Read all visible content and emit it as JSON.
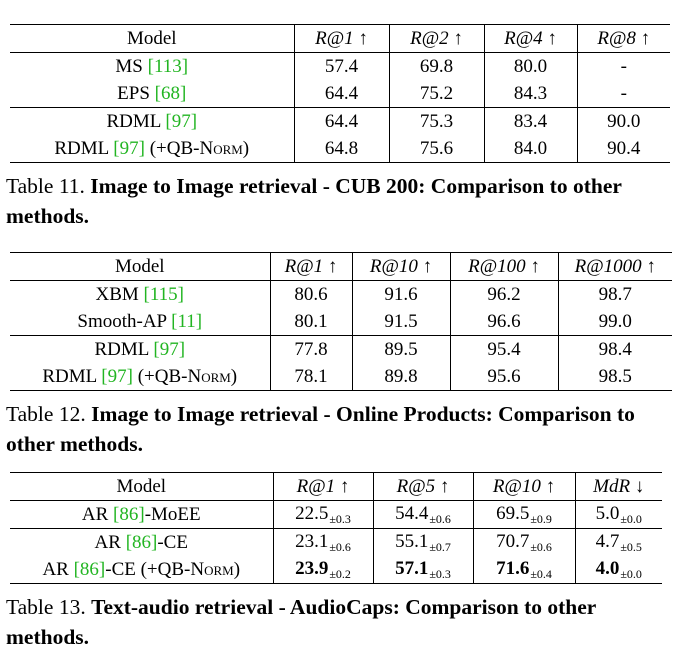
{
  "table11": {
    "headers": [
      "Model",
      "R@1 ↑",
      "R@2 ↑",
      "R@4 ↑",
      "R@8 ↑"
    ],
    "rows": [
      {
        "model": "MS ",
        "ref": "[113]",
        "suffix": "",
        "vals": [
          "57.4",
          "69.8",
          "80.0",
          "-"
        ],
        "bold_model": false,
        "bold": [
          false,
          false,
          false,
          false
        ]
      },
      {
        "model": "EPS ",
        "ref": "[68]",
        "suffix": "",
        "vals": [
          "64.4",
          "75.2",
          "84.3",
          "-"
        ],
        "bold_model": false,
        "bold": [
          false,
          false,
          true,
          false
        ]
      },
      {
        "model": "RDML ",
        "ref": "[97]",
        "suffix": "",
        "vals": [
          "64.4",
          "75.3",
          "83.4",
          "90.0"
        ],
        "bold_model": false,
        "bold": [
          false,
          false,
          false,
          false
        ]
      },
      {
        "model": "RDML ",
        "ref": "[97]",
        "suffix": " (+QB-Norm)",
        "vals": [
          "64.8",
          "75.6",
          "84.0",
          "90.4"
        ],
        "bold_model": true,
        "bold": [
          true,
          true,
          false,
          true
        ]
      }
    ],
    "caption_label": "Table 11. ",
    "caption_title": "Image to Image retrieval - CUB 200: Comparison to other methods."
  },
  "table12": {
    "headers": [
      "Model",
      "R@1 ↑",
      "R@10 ↑",
      "R@100 ↑",
      "R@1000 ↑"
    ],
    "rows": [
      {
        "model": "XBM ",
        "ref": "[115]",
        "suffix": "",
        "vals": [
          "80.6",
          "91.6",
          "96.2",
          "98.7"
        ],
        "bold_model": false,
        "bold": [
          true,
          true,
          false,
          false
        ]
      },
      {
        "model": "Smooth-AP ",
        "ref": "[11]",
        "suffix": "",
        "vals": [
          "80.1",
          "91.5",
          "96.6",
          "99.0"
        ],
        "bold_model": false,
        "bold": [
          false,
          false,
          true,
          true
        ]
      },
      {
        "model": "RDML ",
        "ref": "[97]",
        "suffix": "",
        "vals": [
          "77.8",
          "89.5",
          "95.4",
          "98.4"
        ],
        "bold_model": false,
        "bold": [
          false,
          false,
          false,
          false
        ]
      },
      {
        "model": "RDML ",
        "ref": "[97]",
        "suffix": " (+QB-Norm)",
        "vals": [
          "78.1",
          "89.8",
          "95.6",
          "98.5"
        ],
        "bold_model": true,
        "bold": [
          false,
          false,
          false,
          false
        ]
      }
    ],
    "caption_label": "Table 12. ",
    "caption_title": "Image to Image retrieval - Online Products: Comparison to other methods."
  },
  "table13": {
    "headers": [
      "Model",
      "R@1 ↑",
      "R@5 ↑",
      "R@10 ↑",
      "MdR ↓"
    ],
    "rows": [
      {
        "model": "AR ",
        "ref": "[86]",
        "suffix": "-MoEE",
        "vals": [
          "22.5",
          "54.4",
          "69.5",
          "5.0"
        ],
        "subs": [
          "±0.3",
          "±0.6",
          "±0.9",
          "±0.0"
        ],
        "bold_model": false,
        "bold": [
          false,
          false,
          false,
          false
        ]
      },
      {
        "model": "AR ",
        "ref": "[86]",
        "suffix": "-CE",
        "vals": [
          "23.1",
          "55.1",
          "70.7",
          "4.7"
        ],
        "subs": [
          "±0.6",
          "±0.7",
          "±0.6",
          "±0.5"
        ],
        "bold_model": false,
        "bold": [
          false,
          false,
          false,
          false
        ]
      },
      {
        "model": "AR ",
        "ref": "[86]",
        "suffix": "-CE (+QB-Norm)",
        "vals": [
          "23.9",
          "57.1",
          "71.6",
          "4.0"
        ],
        "subs": [
          "±0.2",
          "±0.3",
          "±0.4",
          "±0.0"
        ],
        "bold_model": true,
        "bold": [
          true,
          true,
          true,
          true
        ]
      }
    ],
    "caption_label": "Table 13. ",
    "caption_title": "Text-audio retrieval - AudioCaps: Comparison to other methods."
  }
}
